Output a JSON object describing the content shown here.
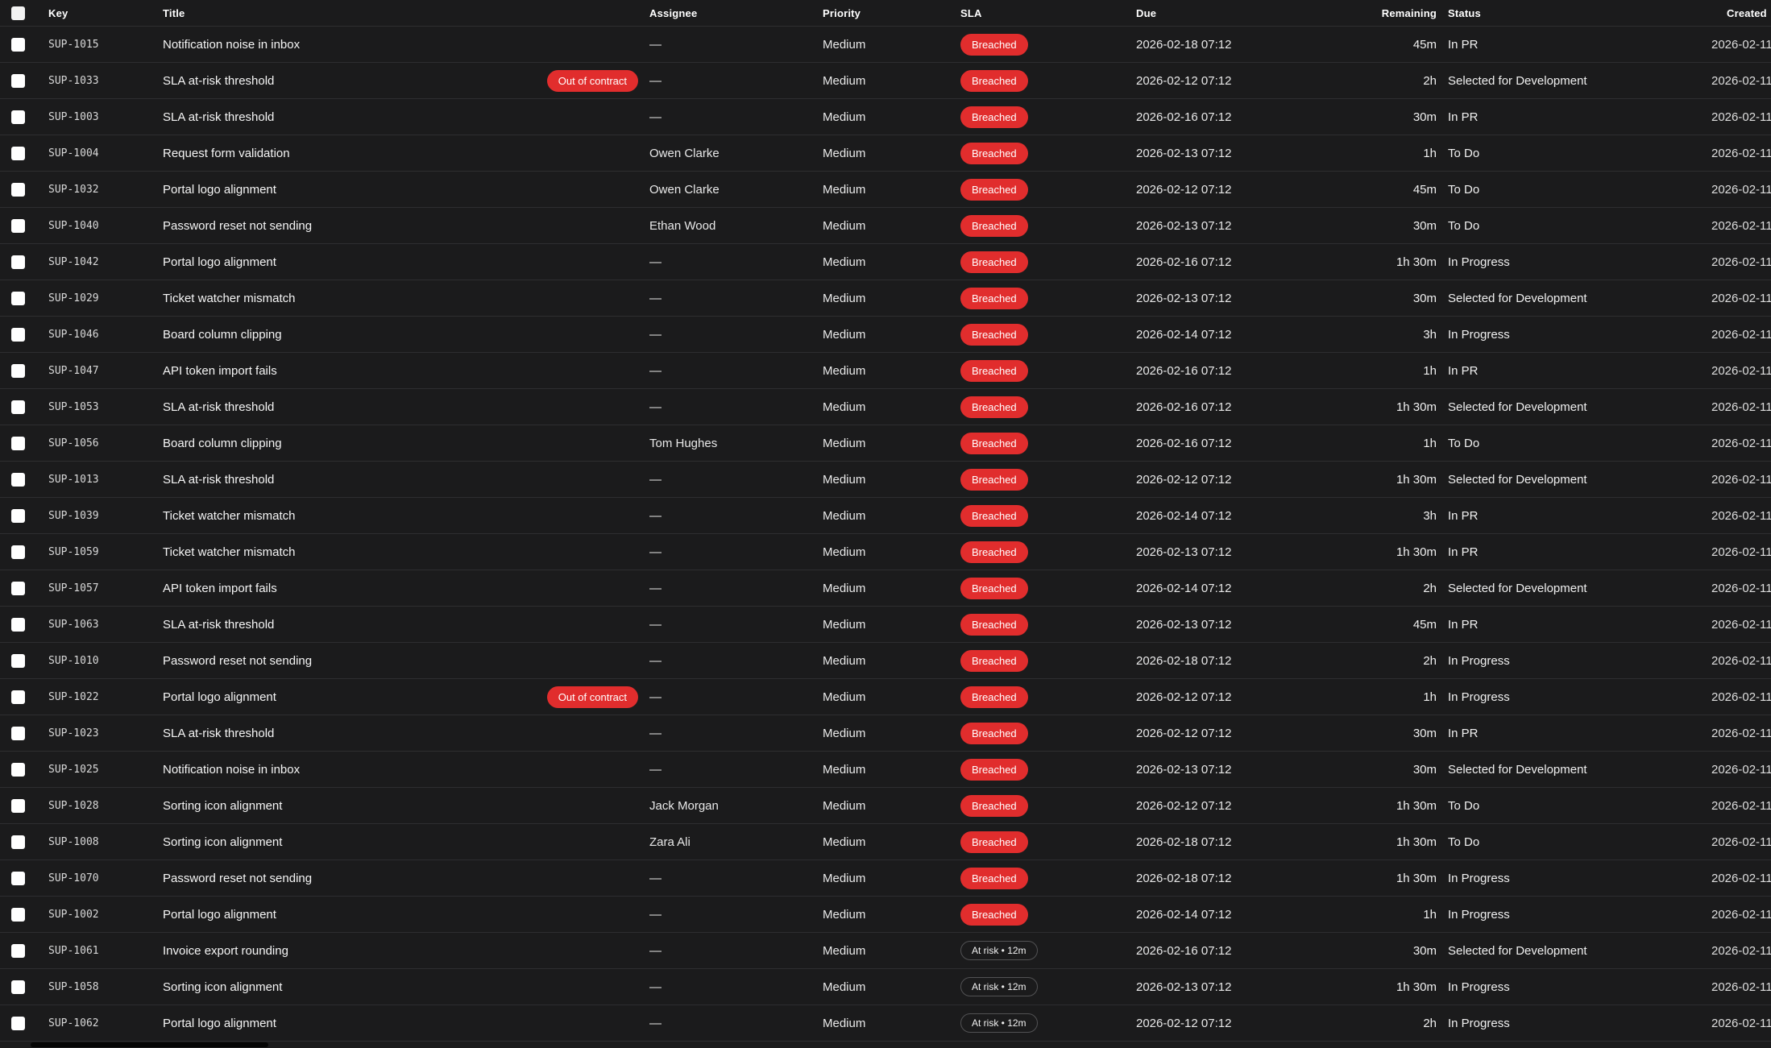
{
  "colors": {
    "background": "#1b1b1c",
    "divider": "#2e2e30",
    "sla_breached_red": "#e12d2d",
    "out_of_contract_red": "#e12d2d",
    "at_risk_border": "#525254",
    "checkbox_fill": "#ffffff",
    "text_primary": "#f5f5f5"
  },
  "table": {
    "headers": {
      "key": "Key",
      "title": "Title",
      "assignee": "Assignee",
      "priority": "Priority",
      "sla": "SLA",
      "due": "Due",
      "remaining": "Remaining",
      "status": "Status",
      "created": "Created"
    },
    "rows": [
      {
        "key": "SUP-1015",
        "title": "Notification noise in inbox",
        "title_badge": null,
        "assignee": "—",
        "priority": "Medium",
        "sla": {
          "label": "Breached",
          "type": "breached"
        },
        "due": "2026-02-18 07:12",
        "remaining": "45m",
        "status": "In PR",
        "created": "2026-02-11"
      },
      {
        "key": "SUP-1033",
        "title": "SLA at-risk threshold",
        "title_badge": "Out of contract",
        "assignee": "—",
        "priority": "Medium",
        "sla": {
          "label": "Breached",
          "type": "breached"
        },
        "due": "2026-02-12 07:12",
        "remaining": "2h",
        "status": "Selected for Development",
        "created": "2026-02-11"
      },
      {
        "key": "SUP-1003",
        "title": "SLA at-risk threshold",
        "title_badge": null,
        "assignee": "—",
        "priority": "Medium",
        "sla": {
          "label": "Breached",
          "type": "breached"
        },
        "due": "2026-02-16 07:12",
        "remaining": "30m",
        "status": "In PR",
        "created": "2026-02-11"
      },
      {
        "key": "SUP-1004",
        "title": "Request form validation",
        "title_badge": null,
        "assignee": "Owen Clarke",
        "priority": "Medium",
        "sla": {
          "label": "Breached",
          "type": "breached"
        },
        "due": "2026-02-13 07:12",
        "remaining": "1h",
        "status": "To Do",
        "created": "2026-02-11"
      },
      {
        "key": "SUP-1032",
        "title": "Portal logo alignment",
        "title_badge": null,
        "assignee": "Owen Clarke",
        "priority": "Medium",
        "sla": {
          "label": "Breached",
          "type": "breached"
        },
        "due": "2026-02-12 07:12",
        "remaining": "45m",
        "status": "To Do",
        "created": "2026-02-11"
      },
      {
        "key": "SUP-1040",
        "title": "Password reset not sending",
        "title_badge": null,
        "assignee": "Ethan Wood",
        "priority": "Medium",
        "sla": {
          "label": "Breached",
          "type": "breached"
        },
        "due": "2026-02-13 07:12",
        "remaining": "30m",
        "status": "To Do",
        "created": "2026-02-11"
      },
      {
        "key": "SUP-1042",
        "title": "Portal logo alignment",
        "title_badge": null,
        "assignee": "—",
        "priority": "Medium",
        "sla": {
          "label": "Breached",
          "type": "breached"
        },
        "due": "2026-02-16 07:12",
        "remaining": "1h 30m",
        "status": "In Progress",
        "created": "2026-02-11"
      },
      {
        "key": "SUP-1029",
        "title": "Ticket watcher mismatch",
        "title_badge": null,
        "assignee": "—",
        "priority": "Medium",
        "sla": {
          "label": "Breached",
          "type": "breached"
        },
        "due": "2026-02-13 07:12",
        "remaining": "30m",
        "status": "Selected for Development",
        "created": "2026-02-11"
      },
      {
        "key": "SUP-1046",
        "title": "Board column clipping",
        "title_badge": null,
        "assignee": "—",
        "priority": "Medium",
        "sla": {
          "label": "Breached",
          "type": "breached"
        },
        "due": "2026-02-14 07:12",
        "remaining": "3h",
        "status": "In Progress",
        "created": "2026-02-11"
      },
      {
        "key": "SUP-1047",
        "title": "API token import fails",
        "title_badge": null,
        "assignee": "—",
        "priority": "Medium",
        "sla": {
          "label": "Breached",
          "type": "breached"
        },
        "due": "2026-02-16 07:12",
        "remaining": "1h",
        "status": "In PR",
        "created": "2026-02-11"
      },
      {
        "key": "SUP-1053",
        "title": "SLA at-risk threshold",
        "title_badge": null,
        "assignee": "—",
        "priority": "Medium",
        "sla": {
          "label": "Breached",
          "type": "breached"
        },
        "due": "2026-02-16 07:12",
        "remaining": "1h 30m",
        "status": "Selected for Development",
        "created": "2026-02-11"
      },
      {
        "key": "SUP-1056",
        "title": "Board column clipping",
        "title_badge": null,
        "assignee": "Tom Hughes",
        "priority": "Medium",
        "sla": {
          "label": "Breached",
          "type": "breached"
        },
        "due": "2026-02-16 07:12",
        "remaining": "1h",
        "status": "To Do",
        "created": "2026-02-11"
      },
      {
        "key": "SUP-1013",
        "title": "SLA at-risk threshold",
        "title_badge": null,
        "assignee": "—",
        "priority": "Medium",
        "sla": {
          "label": "Breached",
          "type": "breached"
        },
        "due": "2026-02-12 07:12",
        "remaining": "1h 30m",
        "status": "Selected for Development",
        "created": "2026-02-11"
      },
      {
        "key": "SUP-1039",
        "title": "Ticket watcher mismatch",
        "title_badge": null,
        "assignee": "—",
        "priority": "Medium",
        "sla": {
          "label": "Breached",
          "type": "breached"
        },
        "due": "2026-02-14 07:12",
        "remaining": "3h",
        "status": "In PR",
        "created": "2026-02-11"
      },
      {
        "key": "SUP-1059",
        "title": "Ticket watcher mismatch",
        "title_badge": null,
        "assignee": "—",
        "priority": "Medium",
        "sla": {
          "label": "Breached",
          "type": "breached"
        },
        "due": "2026-02-13 07:12",
        "remaining": "1h 30m",
        "status": "In PR",
        "created": "2026-02-11"
      },
      {
        "key": "SUP-1057",
        "title": "API token import fails",
        "title_badge": null,
        "assignee": "—",
        "priority": "Medium",
        "sla": {
          "label": "Breached",
          "type": "breached"
        },
        "due": "2026-02-14 07:12",
        "remaining": "2h",
        "status": "Selected for Development",
        "created": "2026-02-11"
      },
      {
        "key": "SUP-1063",
        "title": "SLA at-risk threshold",
        "title_badge": null,
        "assignee": "—",
        "priority": "Medium",
        "sla": {
          "label": "Breached",
          "type": "breached"
        },
        "due": "2026-02-13 07:12",
        "remaining": "45m",
        "status": "In PR",
        "created": "2026-02-11"
      },
      {
        "key": "SUP-1010",
        "title": "Password reset not sending",
        "title_badge": null,
        "assignee": "—",
        "priority": "Medium",
        "sla": {
          "label": "Breached",
          "type": "breached"
        },
        "due": "2026-02-18 07:12",
        "remaining": "2h",
        "status": "In Progress",
        "created": "2026-02-11"
      },
      {
        "key": "SUP-1022",
        "title": "Portal logo alignment",
        "title_badge": "Out of contract",
        "assignee": "—",
        "priority": "Medium",
        "sla": {
          "label": "Breached",
          "type": "breached"
        },
        "due": "2026-02-12 07:12",
        "remaining": "1h",
        "status": "In Progress",
        "created": "2026-02-11"
      },
      {
        "key": "SUP-1023",
        "title": "SLA at-risk threshold",
        "title_badge": null,
        "assignee": "—",
        "priority": "Medium",
        "sla": {
          "label": "Breached",
          "type": "breached"
        },
        "due": "2026-02-12 07:12",
        "remaining": "30m",
        "status": "In PR",
        "created": "2026-02-11"
      },
      {
        "key": "SUP-1025",
        "title": "Notification noise in inbox",
        "title_badge": null,
        "assignee": "—",
        "priority": "Medium",
        "sla": {
          "label": "Breached",
          "type": "breached"
        },
        "due": "2026-02-13 07:12",
        "remaining": "30m",
        "status": "Selected for Development",
        "created": "2026-02-11"
      },
      {
        "key": "SUP-1028",
        "title": "Sorting icon alignment",
        "title_badge": null,
        "assignee": "Jack Morgan",
        "priority": "Medium",
        "sla": {
          "label": "Breached",
          "type": "breached"
        },
        "due": "2026-02-12 07:12",
        "remaining": "1h 30m",
        "status": "To Do",
        "created": "2026-02-11"
      },
      {
        "key": "SUP-1008",
        "title": "Sorting icon alignment",
        "title_badge": null,
        "assignee": "Zara Ali",
        "priority": "Medium",
        "sla": {
          "label": "Breached",
          "type": "breached"
        },
        "due": "2026-02-18 07:12",
        "remaining": "1h 30m",
        "status": "To Do",
        "created": "2026-02-11"
      },
      {
        "key": "SUP-1070",
        "title": "Password reset not sending",
        "title_badge": null,
        "assignee": "—",
        "priority": "Medium",
        "sla": {
          "label": "Breached",
          "type": "breached"
        },
        "due": "2026-02-18 07:12",
        "remaining": "1h 30m",
        "status": "In Progress",
        "created": "2026-02-11"
      },
      {
        "key": "SUP-1002",
        "title": "Portal logo alignment",
        "title_badge": null,
        "assignee": "—",
        "priority": "Medium",
        "sla": {
          "label": "Breached",
          "type": "breached"
        },
        "due": "2026-02-14 07:12",
        "remaining": "1h",
        "status": "In Progress",
        "created": "2026-02-11"
      },
      {
        "key": "SUP-1061",
        "title": "Invoice export rounding",
        "title_badge": null,
        "assignee": "—",
        "priority": "Medium",
        "sla": {
          "label": "At risk • 12m",
          "type": "at-risk"
        },
        "due": "2026-02-16 07:12",
        "remaining": "30m",
        "status": "Selected for Development",
        "created": "2026-02-11"
      },
      {
        "key": "SUP-1058",
        "title": "Sorting icon alignment",
        "title_badge": null,
        "assignee": "—",
        "priority": "Medium",
        "sla": {
          "label": "At risk • 12m",
          "type": "at-risk"
        },
        "due": "2026-02-13 07:12",
        "remaining": "1h 30m",
        "status": "In Progress",
        "created": "2026-02-11"
      },
      {
        "key": "SUP-1062",
        "title": "Portal logo alignment",
        "title_badge": null,
        "assignee": "—",
        "priority": "Medium",
        "sla": {
          "label": "At risk • 12m",
          "type": "at-risk"
        },
        "due": "2026-02-12 07:12",
        "remaining": "2h",
        "status": "In Progress",
        "created": "2026-02-11"
      }
    ]
  }
}
